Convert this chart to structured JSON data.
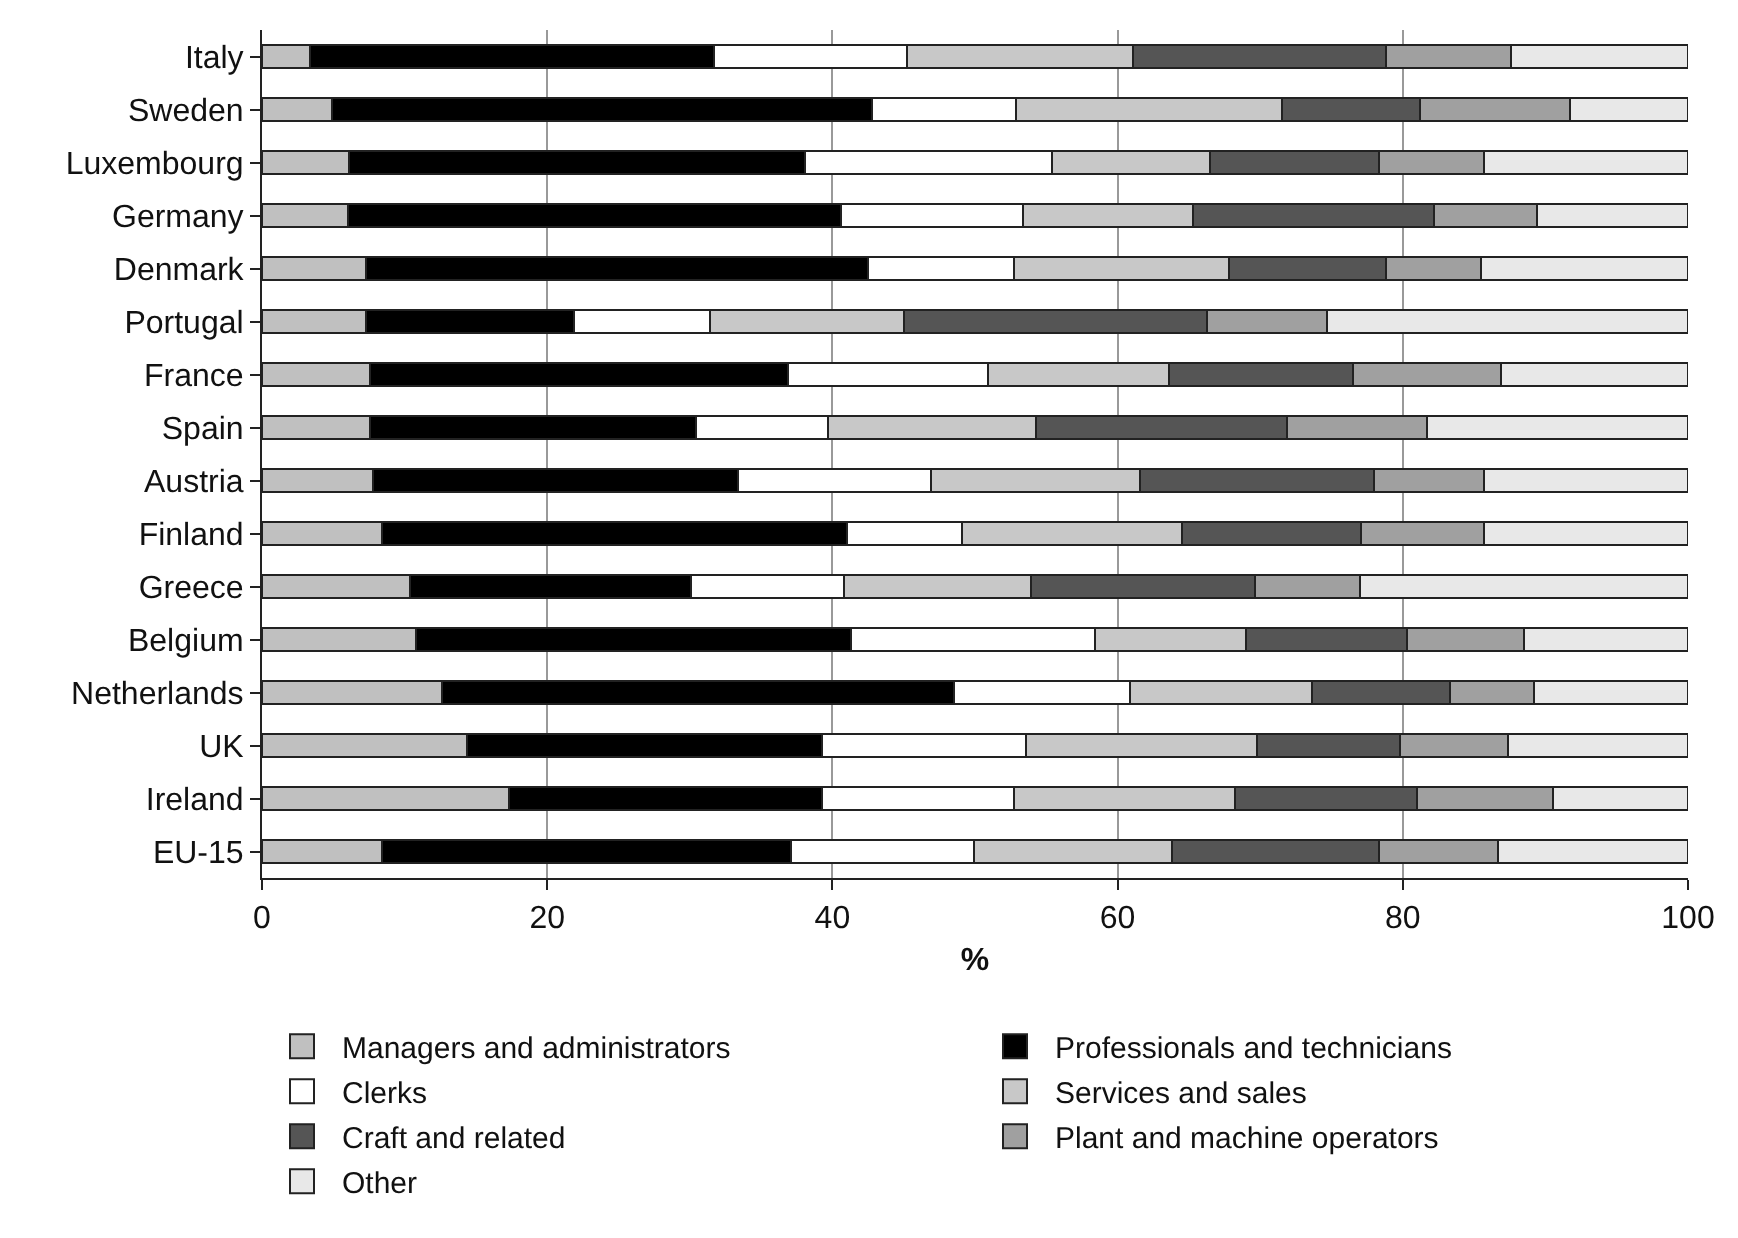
{
  "chart_data": {
    "type": "bar",
    "orientation": "horizontal",
    "stacked": true,
    "xlabel": "%",
    "categories": [
      "Italy",
      "Sweden",
      "Luxembourg",
      "Germany",
      "Denmark",
      "Portugal",
      "France",
      "Spain",
      "Austria",
      "Finland",
      "Greece",
      "Belgium",
      "Netherlands",
      "UK",
      "Ireland",
      "EU-15"
    ],
    "series": [
      {
        "name": "Managers and administrators",
        "color": "#c0c0c0",
        "values": [
          3.4,
          4.9,
          6.1,
          6.0,
          7.3,
          7.3,
          7.6,
          7.6,
          7.8,
          8.4,
          10.4,
          10.8,
          12.6,
          14.4,
          17.3,
          8.4
        ]
      },
      {
        "name": "Professionals and technicians",
        "color": "#000000",
        "values": [
          28.3,
          37.9,
          32.0,
          34.6,
          35.2,
          14.6,
          29.3,
          22.8,
          25.6,
          32.6,
          19.7,
          30.5,
          35.9,
          24.9,
          22.0,
          28.7
        ]
      },
      {
        "name": "Clerks",
        "color": "#ffffff",
        "values": [
          13.5,
          10.1,
          17.3,
          12.8,
          10.2,
          9.5,
          14.0,
          9.3,
          13.5,
          8.1,
          10.7,
          17.1,
          12.4,
          14.3,
          13.4,
          12.8
        ]
      },
      {
        "name": "Services and sales",
        "color": "#c8c8c8",
        "values": [
          15.9,
          18.6,
          11.1,
          11.9,
          15.1,
          13.6,
          12.7,
          14.6,
          14.7,
          15.4,
          13.1,
          10.6,
          12.7,
          16.2,
          15.5,
          13.9
        ]
      },
      {
        "name": "Craft and related",
        "color": "#555555",
        "values": [
          17.7,
          9.7,
          11.8,
          16.9,
          11.0,
          21.3,
          12.9,
          17.6,
          16.4,
          12.6,
          15.7,
          11.3,
          9.7,
          10.0,
          12.8,
          14.5
        ]
      },
      {
        "name": "Plant and machine operators",
        "color": "#a0a0a0",
        "values": [
          8.8,
          10.5,
          7.4,
          7.2,
          6.7,
          8.4,
          10.4,
          9.8,
          7.7,
          8.6,
          7.4,
          8.2,
          5.9,
          7.6,
          9.5,
          8.4
        ]
      },
      {
        "name": "Other",
        "color": "#e8e8e8",
        "values": [
          12.4,
          8.3,
          14.3,
          10.6,
          14.5,
          25.3,
          13.1,
          18.3,
          14.3,
          14.3,
          23.0,
          11.5,
          10.8,
          12.6,
          9.5,
          13.3
        ]
      }
    ],
    "xlim": [
      0,
      100
    ],
    "xticks": [
      0,
      20,
      40,
      60,
      80,
      100
    ],
    "grid": "x",
    "legend": "bottom"
  }
}
